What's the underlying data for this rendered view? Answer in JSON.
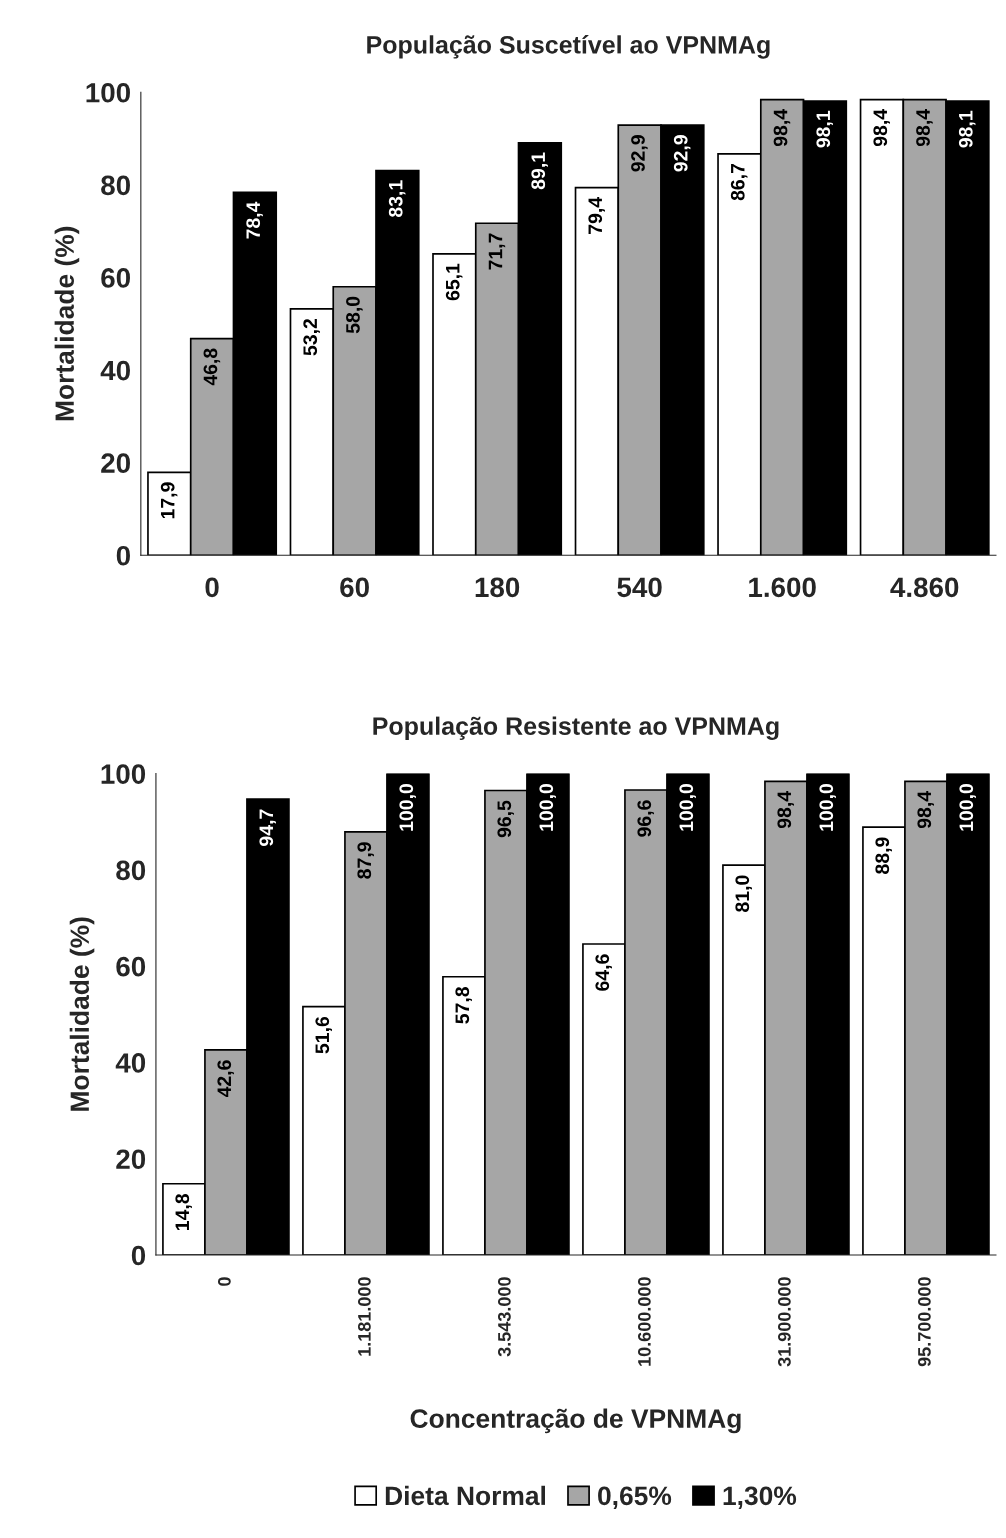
{
  "chart_data": [
    {
      "type": "bar",
      "title": "População Suscetível ao VPNMAg",
      "ylabel": "Mortalidade (%)",
      "categories": [
        "0",
        "60",
        "180",
        "540",
        "1.600",
        "4.860"
      ],
      "ylim": [
        0,
        100
      ],
      "yticks": [
        0,
        20,
        40,
        60,
        80,
        100
      ],
      "grid": false,
      "legend": false,
      "series": [
        {
          "color": "#ffffff",
          "values": [
            17.9,
            53.2,
            65.1,
            79.4,
            86.7,
            98.4
          ],
          "value_labels": [
            "17,9",
            "53,2",
            "65,1",
            "79,4",
            "86,7",
            "98,4"
          ]
        },
        {
          "color": "#a6a6a6",
          "values": [
            46.8,
            58.0,
            71.7,
            92.9,
            98.4,
            98.4
          ],
          "value_labels": [
            "46,8",
            "58,0",
            "71,7",
            "92,9",
            "98,4",
            "98,4"
          ]
        },
        {
          "color": "#000000",
          "values": [
            78.4,
            83.1,
            89.1,
            92.9,
            98.1,
            98.1
          ],
          "value_labels": [
            "78,4",
            "83,1",
            "89,1",
            "92,9",
            "98,1",
            "98,1"
          ]
        }
      ]
    },
    {
      "type": "bar",
      "title": "População Resistente ao VPNMAg",
      "ylabel": "Mortalidade (%)",
      "xlabel": "Concentração de VPNMAg",
      "categories": [
        "0",
        "1.181.000",
        "3.543.000",
        "10.600.000",
        "31.900.000",
        "95.700.000"
      ],
      "ylim": [
        0,
        100
      ],
      "yticks": [
        0,
        20,
        40,
        60,
        80,
        100
      ],
      "grid": false,
      "legend": "bottom",
      "series": [
        {
          "name": "Dieta Normal",
          "color": "#ffffff",
          "values": [
            14.8,
            51.6,
            57.8,
            64.6,
            81.0,
            88.9
          ],
          "value_labels": [
            "14,8",
            "51,6",
            "57,8",
            "64,6",
            "81,0",
            "88,9"
          ]
        },
        {
          "name": "0,65%",
          "color": "#a6a6a6",
          "values": [
            42.6,
            87.9,
            96.5,
            96.6,
            98.4,
            98.4
          ],
          "value_labels": [
            "42,6",
            "87,9",
            "96,5",
            "96,6",
            "98,4",
            "98,4"
          ]
        },
        {
          "name": "1,30%",
          "color": "#000000",
          "values": [
            94.7,
            100.0,
            100.0,
            100.0,
            100.0,
            100.0
          ],
          "value_labels": [
            "94,7",
            "100,0",
            "100,0",
            "100,0",
            "100,0",
            "100,0"
          ]
        }
      ]
    }
  ]
}
